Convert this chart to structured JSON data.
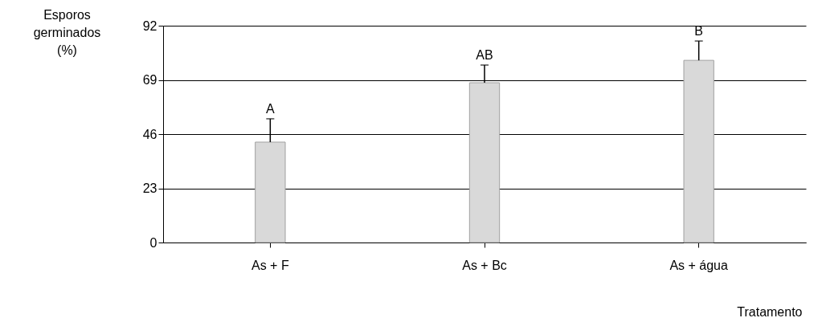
{
  "chart_data": {
    "type": "bar",
    "ylabel": "Esporos germinados (%)",
    "xlabel": "Tratamento",
    "categories": [
      "As + F",
      "As + Bc",
      "As + água"
    ],
    "values": [
      42.6,
      67.8,
      77.3
    ],
    "errors": [
      [
        42.6,
        52.5
      ],
      [
        67.8,
        75.3
      ],
      [
        77.3,
        85.5
      ]
    ],
    "color": "#d9d9d9",
    "ylim": [
      0,
      92
    ],
    "yticks": [
      0,
      23,
      46,
      69,
      92
    ],
    "grid": "y",
    "annotations": [
      {
        "text": "A",
        "x": "As + F",
        "y": 52.5
      },
      {
        "text": "AB",
        "x": "As + Bc",
        "y": 75.3
      },
      {
        "text": "B",
        "x": "As + água",
        "y": 85.5
      }
    ]
  }
}
